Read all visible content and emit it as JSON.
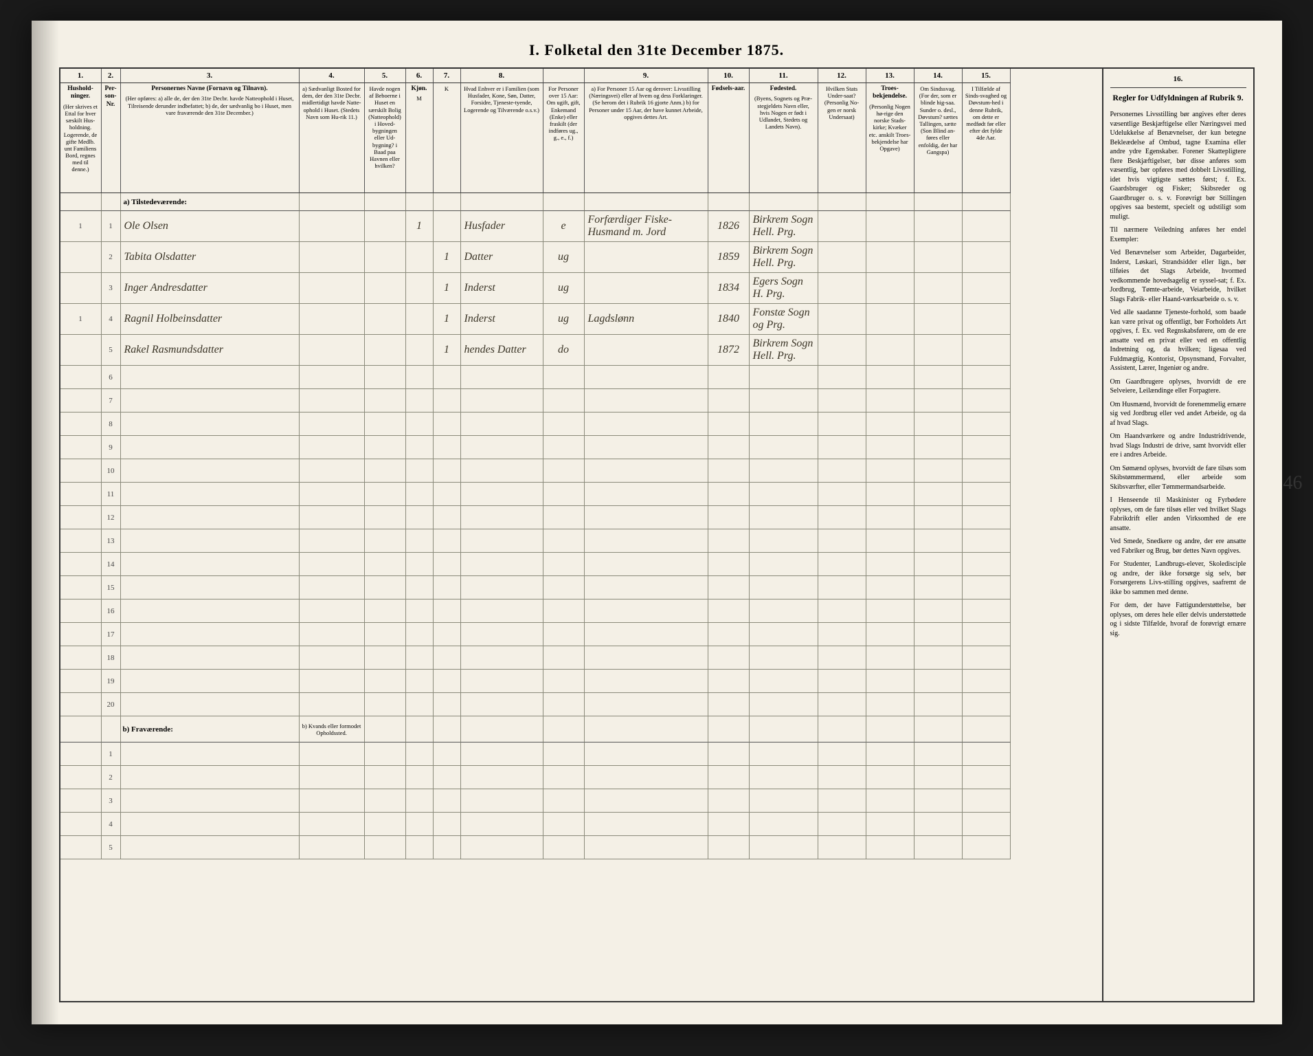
{
  "title": "I. Folketal den 31te December 1875.",
  "page_number_margin": "46",
  "columns": {
    "nums": [
      "1.",
      "2.",
      "3.",
      "4.",
      "5.",
      "6.",
      "7.",
      "8.",
      "",
      "9.",
      "10.",
      "11.",
      "12.",
      "13.",
      "14.",
      "15."
    ],
    "heads": [
      {
        "t": "Hushold-ninger.",
        "d": "(Her skrives et Ettal for hver sæskilt Hus-holdning. Logerende, de gifte Medlb. unt Familiens Bord, regnes med til denne.)"
      },
      {
        "t": "Per-son-Nr.",
        "d": ""
      },
      {
        "t": "Personernes Navne (Fornavn og Tilnavn).",
        "d": "(Her opføres: a) alle de, der den 31te Decbr. havde Natteophold i Huset, Tilreisende derunder indbefattet; b) de, der sædvanlig bo i Huset, men vare fraværende den 31te December.)"
      },
      {
        "t": "",
        "d": "a) Sædvanligt Bosted for dem, der den 31te Decbr. midlertidigt havde Natte-ophold i Huset. (Stedets Navn som Hu-rik 11.)"
      },
      {
        "t": "",
        "d": "Havde nogen af Beboerne i Huset en særskilt Bolig (Natteophold) i Hoved-bygningen eller Ud-bygning? i Baad paa Havnen eller hvilken?"
      },
      {
        "t": "Kjøn.",
        "d": "M"
      },
      {
        "t": "",
        "d": "K"
      },
      {
        "t": "",
        "d": "Hvad Enhver er i Familien (som Husfader, Kone, Søn, Datter, Forsidre, Tjeneste-tyende, Logerende og Tilværende o.s.v.)"
      },
      {
        "t": "",
        "d": "For Personer over 15 Aar: Om ugift, gift, Enkemand (Enke) eller fraskilt (der indføres ug., g., e., f.)"
      },
      {
        "t": "",
        "d": "a) For Personer 15 Aar og derover: Livsstilling (Næringsvei) eller af hvem og dess Forklaringer. (Se herom det i Rubrik 16 gjorte Anm.) b) for Personer under 15 Aar, der have kunnet Arbeide, opgives dettes Art."
      },
      {
        "t": "Fødsels-aar.",
        "d": ""
      },
      {
        "t": "Fødested.",
        "d": "(Byens, Sognets og Præ-stegjeldets Navn eller, hvis Nogen er født i Udlandet, Stedets og Landets Navn)."
      },
      {
        "t": "",
        "d": "Hvilken Stats Under-saat? (Personlig No-gen er norsk Undersaat)"
      },
      {
        "t": "Troes-bekjendelse.",
        "d": "(Personlig Nogen hø-rige den norske Stads-kirke; Kvæker etc. anskilt Troes-bekjendelse har Opgave)"
      },
      {
        "t": "",
        "d": "Om Sindssvag. (For der, som er blinde hig-saa. Sunder o. desl., Døvstum? sættes Tallingen, sætte (Son Blind an-føres eller enfoldig, der har Gangspa)"
      },
      {
        "t": "",
        "d": "I Tilfælde af Sinds-svaghed og Døvstum-hed i denne Rubrik, om dette er medfødt før eller efter det fylde 4de Aar."
      }
    ]
  },
  "section_a": "a) Tilstedeværende:",
  "section_b": "b) Fraværende:",
  "section_b_col4": "b) Kvands eller formodet Opholdssted.",
  "rows_a": [
    {
      "hh": "1",
      "pn": "1",
      "name": "Ole Olsen",
      "c4": "",
      "c5": "",
      "m": "1",
      "k": "",
      "fam": "Husfader",
      "civ": "e",
      "occ": "Forfærdiger Fiske-Husmand m. Jord",
      "year": "1826",
      "place": "Birkrem Sogn Hell. Prg."
    },
    {
      "hh": "",
      "pn": "2",
      "name": "Tabita Olsdatter",
      "c4": "",
      "c5": "",
      "m": "",
      "k": "1",
      "fam": "Datter",
      "civ": "ug",
      "occ": "",
      "year": "1859",
      "place": "Birkrem Sogn Hell. Prg."
    },
    {
      "hh": "",
      "pn": "3",
      "name": "Inger Andresdatter",
      "c4": "",
      "c5": "",
      "m": "",
      "k": "1",
      "fam": "Inderst",
      "civ": "ug",
      "occ": "",
      "year": "1834",
      "place": "Egers Sogn H. Prg."
    },
    {
      "hh": "1",
      "pn": "4",
      "name": "Ragnil Holbeinsdatter",
      "c4": "",
      "c5": "",
      "m": "",
      "k": "1",
      "fam": "Inderst",
      "civ": "ug",
      "occ": "Lagdslønn",
      "year": "1840",
      "place": "Fonstæ Sogn og Prg."
    },
    {
      "hh": "",
      "pn": "5",
      "name": "Rakel Rasmundsdatter",
      "c4": "",
      "c5": "",
      "m": "",
      "k": "1",
      "fam": "hendes Datter",
      "civ": "do",
      "occ": "",
      "year": "1872",
      "place": "Birkrem Sogn Hell. Prg."
    }
  ],
  "blank_rows_a": 15,
  "blank_rows_b": 5,
  "side": {
    "col": "16.",
    "heading": "Regler for Udfyldningen af Rubrik 9.",
    "paras": [
      "Personernes Livsstilling bør angives efter deres væsentlige Beskjæftigelse eller Næringsvei med Udelukkelse af Benævnelser, der kun betegne Bekleædelse af Ombud, tagne Examina eller andre ydre Egenskaber. Forener Skattepligtere flere Beskjæftigelser, bør disse anføres som væsentlig, bør opføres med dobbelt Livsstilling, idet hvis vigtigste sættes først; f. Ex. Gaardsbruger og Fisker; Skibsreder og Gaardbruger o. s. v. Forøvrigt bør Stillingen opgives saa bestemt, specielt og udstiligt som muligt.",
      "Til nærmere Veiledning anføres her endel Exempler:",
      "Ved Benævnelser som Arbeider, Dagarbeider, Inderst, Løskari, Strandsidder eller lign., bør tilføies det Slags Arbeide, hvormed vedkommende hovedsagelig er syssel-sat; f. Ex. Jordbrug, Tømte-arbeide, Veiarbeide, hvilket Slags Fabrik- eller Haand-værksarbeide o. s. v.",
      "Ved alle saadanne Tjeneste-forhold, som baade kan være privat og offentligt, bør Forholdets Art opgives, f. Ex. ved Regnskabsførere, om de ere ansatte ved en privat eller ved en offentlig Indretning og, da hvilken; ligesaa ved Fuldmægtig, Kontorist, Opsynsmand, Forvalter, Assistent, Lærer, Ingeniør og andre.",
      "Om Gaardbrugere oplyses, hvorvidt de ere Selveiere, Leilændinge eller Forpagtere.",
      "Om Husmænd, hvorvidt de forenemmelig ernære sig ved Jordbrug eller ved andet Arbeide, og da af hvad Slags.",
      "Om Haandværkere og andre Industridrivende, hvad Slags Industri de drive, samt hvorvidt eller ere i andres Arbeide.",
      "Om Sømænd oplyses, hvorvidt de fare tilsøs som Skibstømmermænd, eller arbeide som Skibsværfter, eller Tømmermandsarbeide.",
      "I Henseende til Maskinister og Fyrbødere oplyses, om de fare tilsøs eller ved hvilket Slags Fabrikdrift eller anden Virksomhed de ere ansatte.",
      "Ved Smede, Snedkere og andre, der ere ansatte ved Fabriker og Brug, bør dettes Navn opgives.",
      "For Studenter, Landbrugs-elever, Skoledisciple og andre, der ikke forsørge sig selv, bør Forsørgerens Livs-stilling opgives, saafremt de ikke bo sammen med denne.",
      "For dem, der have Fattigunderstøttelse, bør oplyses, om deres hele eller delvis understøttede og i sidste Tilfælde, hvoraf de forøvrigt ernære sig."
    ]
  }
}
